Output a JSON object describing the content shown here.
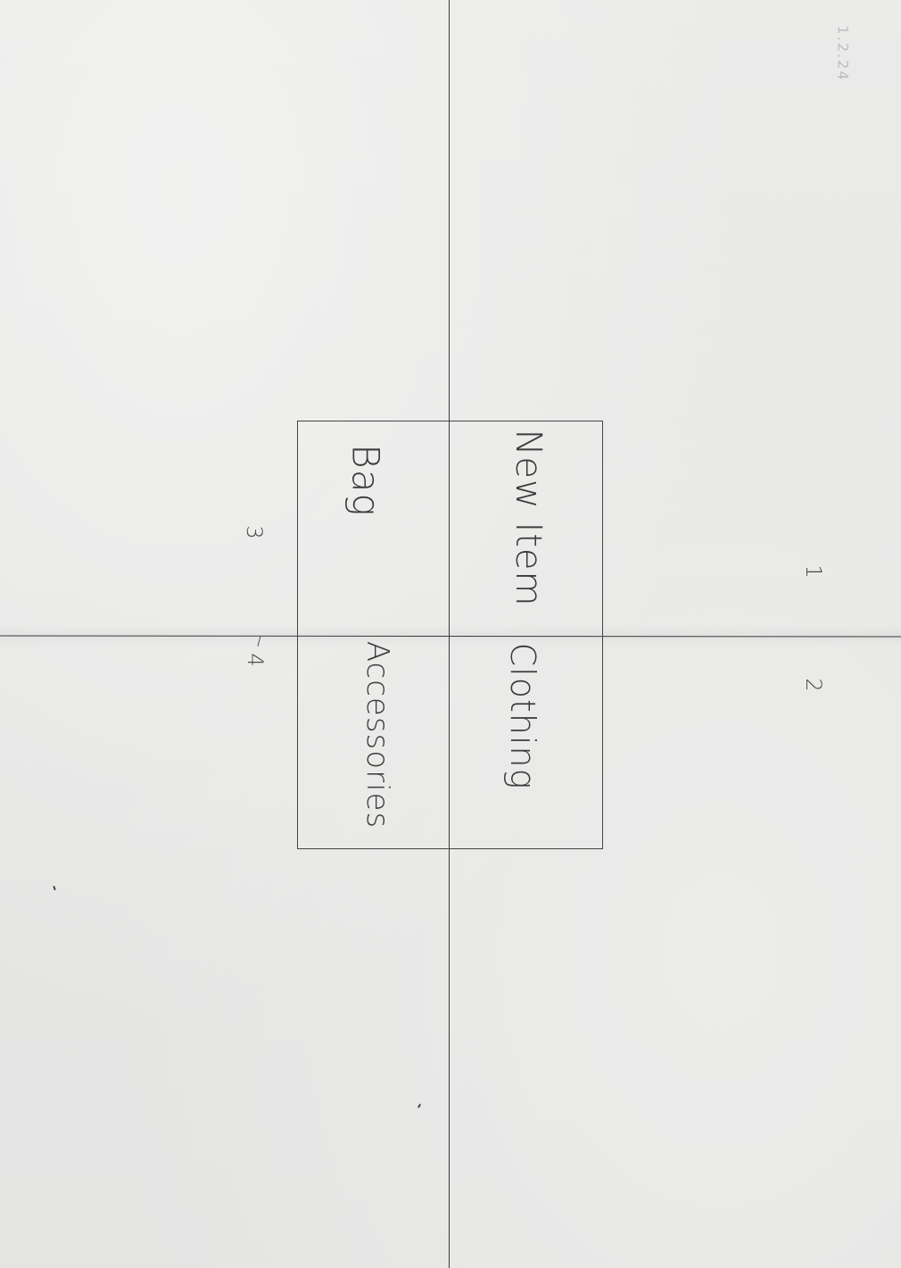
{
  "sheet": {
    "date_note": "1.2.24",
    "paper_color": "#e9e9e8",
    "ink_color": "#3b3b3b"
  },
  "box": {
    "labels": {
      "new_item": "New Item",
      "clothing": "Clothing",
      "bag": "Bag",
      "accessories": "Accessories"
    }
  },
  "numbers": {
    "one": "1",
    "two": "2",
    "three": "3",
    "four": "4"
  }
}
